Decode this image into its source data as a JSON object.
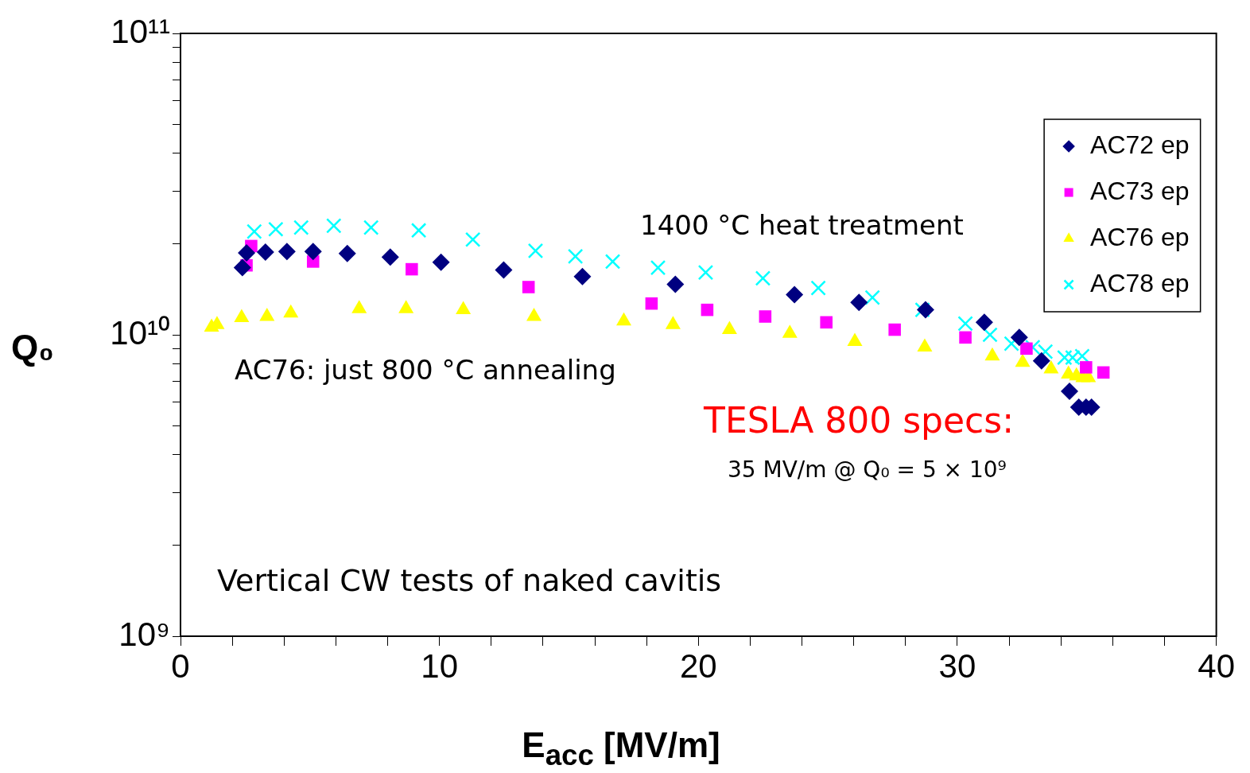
{
  "chart_data": {
    "type": "scatter",
    "xlabel": "E$_{acc}$ [MV/m]",
    "ylabel": "Q₀",
    "xlim": [
      0,
      40
    ],
    "xticks": [
      0,
      {
        "value": 2,
        "label": null
      },
      {
        "value": 4,
        "label": null
      },
      {
        "value": 6,
        "label": null
      },
      {
        "value": 8,
        "label": null
      },
      10,
      {
        "value": 12,
        "label": null
      },
      {
        "value": 14,
        "label": null
      },
      {
        "value": 16,
        "label": null
      },
      {
        "value": 18,
        "label": null
      },
      20,
      {
        "value": 22,
        "label": null
      },
      {
        "value": 24,
        "label": null
      },
      {
        "value": 26,
        "label": null
      },
      {
        "value": 28,
        "label": null
      },
      30,
      {
        "value": 32,
        "label": null
      },
      {
        "value": 34,
        "label": null
      },
      {
        "value": 36,
        "label": null
      },
      {
        "value": 38,
        "label": null
      },
      40
    ],
    "ylim": [
      1000000000,
      100000000000
    ],
    "log": "y",
    "yticks": [
      {
        "value": 1000000000,
        "label": "10⁹"
      },
      {
        "value": 2000000000,
        "label": null
      },
      {
        "value": 3000000000,
        "label": null
      },
      {
        "value": 4000000000,
        "label": null
      },
      {
        "value": 5000000000,
        "label": null
      },
      {
        "value": 6000000000,
        "label": null
      },
      {
        "value": 7000000000,
        "label": null
      },
      {
        "value": 8000000000,
        "label": null
      },
      {
        "value": 9000000000,
        "label": null
      },
      {
        "value": 10000000000,
        "label": "10¹⁰"
      },
      {
        "value": 20000000000,
        "label": null
      },
      {
        "value": 30000000000,
        "label": null
      },
      {
        "value": 40000000000,
        "label": null
      },
      {
        "value": 50000000000,
        "label": null
      },
      {
        "value": 60000000000,
        "label": null
      },
      {
        "value": 70000000000,
        "label": null
      },
      {
        "value": 80000000000,
        "label": null
      },
      {
        "value": 90000000000,
        "label": null
      },
      {
        "value": 100000000000,
        "label": "10¹¹"
      }
    ],
    "grid": false,
    "legend": "top right",
    "series": [
      {
        "name": "AC72 ep",
        "color": "#000080",
        "marker": "diamond",
        "x": [
          2.39,
          2.55,
          3.28,
          4.11,
          5.12,
          6.44,
          8.1,
          10.06,
          12.48,
          15.52,
          19.11,
          23.71,
          26.2,
          28.77,
          31.04,
          32.39,
          33.25,
          34.33,
          34.69,
          34.97,
          35.18
        ],
        "values": [
          16700000000,
          18700000000,
          18800000000,
          18900000000,
          18900000000,
          18600000000,
          18100000000,
          17400000000,
          16400000000,
          15600000000,
          14700000000,
          13600000000,
          12800000000,
          12100000000,
          11000000000,
          9800000000,
          8200000000,
          6500000000,
          5750000000,
          5750000000,
          5750000000
        ]
      },
      {
        "name": "AC73 ep",
        "color": "#ff00ff",
        "marker": "square",
        "x": [
          2.55,
          2.73,
          5.12,
          8.93,
          13.44,
          18.19,
          20.34,
          22.58,
          24.94,
          27.58,
          30.31,
          32.67,
          34.97,
          35.64
        ],
        "values": [
          17000000000,
          19700000000,
          17500000000,
          16500000000,
          14400000000,
          12700000000,
          12100000000,
          11500000000,
          11000000000,
          10400000000,
          9800000000,
          9000000000,
          7800000000,
          7500000000
        ]
      },
      {
        "name": "AC76 ep",
        "color": "#ffff00",
        "marker": "triangle",
        "x": [
          1.2,
          1.41,
          2.36,
          3.34,
          4.26,
          6.9,
          8.71,
          10.92,
          13.65,
          17.12,
          19.02,
          21.2,
          23.53,
          26.04,
          28.74,
          31.35,
          32.52,
          33.62,
          34.29,
          34.6,
          34.85,
          35.06
        ],
        "values": [
          10600000000,
          10800000000,
          11400000000,
          11500000000,
          11800000000,
          12200000000,
          12200000000,
          12100000000,
          11500000000,
          11100000000,
          10800000000,
          10400000000,
          10100000000,
          9500000000,
          9100000000,
          8500000000,
          8100000000,
          7700000000,
          7400000000,
          7300000000,
          7200000000,
          7200000000
        ]
      },
      {
        "name": "AC78 ep",
        "color": "#00ffff",
        "marker": "cross",
        "x": [
          2.85,
          3.68,
          4.66,
          5.92,
          7.36,
          9.2,
          11.29,
          13.71,
          15.25,
          16.69,
          18.44,
          20.28,
          22.49,
          24.63,
          26.72,
          28.65,
          30.31,
          31.26,
          32.09,
          32.91,
          33.4,
          34.14,
          34.45,
          34.82
        ],
        "values": [
          22000000000,
          22400000000,
          22700000000,
          23000000000,
          22700000000,
          22200000000,
          20700000000,
          19000000000,
          18200000000,
          17500000000,
          16700000000,
          16100000000,
          15400000000,
          14300000000,
          13300000000,
          12100000000,
          10900000000,
          10000000000,
          9350000000,
          9100000000,
          8800000000,
          8400000000,
          8400000000,
          8500000000
        ]
      }
    ],
    "annotations": [
      "1400 °C heat treatment",
      "AC76: just 800 °C annealing",
      "TESLA 800 specs:",
      "35 MV/m @ Q₀ = 5 × 10⁹",
      "Vertical CW tests of naked cavitis"
    ]
  }
}
